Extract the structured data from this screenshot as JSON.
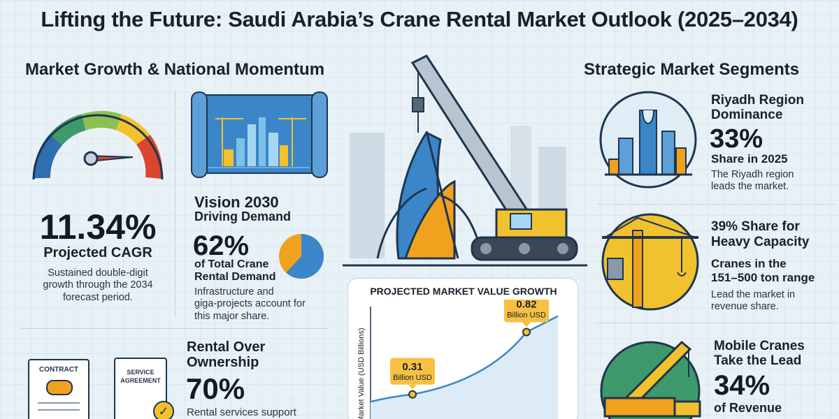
{
  "title": "Lifting the Future: Saudi Arabia’s Crane Rental Market Outlook (2025–2034)",
  "left_section": {
    "heading": "Market Growth & National Momentum",
    "cagr": {
      "value": "11.34%",
      "label": "Projected CAGR",
      "description_line1": "Sustained double-digit",
      "description_line2": "growth through the 2034",
      "description_line3": "forecast period."
    },
    "vision": {
      "title_line1": "Vision 2030",
      "title_line2": "Driving Demand",
      "percent": "62%",
      "percent_value": 0.62,
      "label_line1": "of Total Crane",
      "label_line2": "Rental Demand",
      "description_line1": "Infrastructure and",
      "description_line2": "giga-projects account for",
      "description_line3": "this major share."
    },
    "rental": {
      "title_line1": "Rental Over",
      "title_line2": "Ownership",
      "percent": "70%",
      "description_line1": "Rental services support",
      "contract_label": "CONTRACT",
      "service_label_line1": "SERVICE",
      "service_label_line2": "AGREEMENT"
    }
  },
  "chart_panel": {
    "chart_data": {
      "type": "line",
      "title": "PROJECTED MARKET VALUE GROWTH",
      "ylabel": "Market Value (USD Billions)",
      "series": [
        {
          "values": [
            0.31,
            0.82
          ]
        }
      ],
      "annotations": [
        {
          "value": "0.31",
          "unit": "Billion USD"
        },
        {
          "value": "0.82",
          "unit": "Billion USD"
        }
      ]
    }
  },
  "right_section": {
    "heading": "Strategic Market Segments",
    "riyadh": {
      "title_line1": "Riyadh Region",
      "title_line2": "Dominance",
      "percent": "33%",
      "label": "Share in 2025",
      "description_line1": "The Riyadh region",
      "description_line2": "leads the market."
    },
    "heavy": {
      "title_line1": "39% Share for",
      "title_line2": "Heavy Capacity",
      "sub_line1": "Cranes in the",
      "sub_line2": "151–500 ton range",
      "description_line1": "Lead the market in",
      "description_line2": "revenue share."
    },
    "mobile": {
      "title_line1": "Mobile Cranes",
      "title_line2": "Take the Lead",
      "percent": "34%",
      "label": "of Revenue"
    }
  },
  "colors": {
    "accent_blue": "#3a86c8",
    "accent_orange": "#f0a21e",
    "gauge_red": "#d9472f",
    "gauge_green": "#3e9a6a",
    "gauge_yellow": "#f2c12e",
    "navy": "#1f3550"
  }
}
